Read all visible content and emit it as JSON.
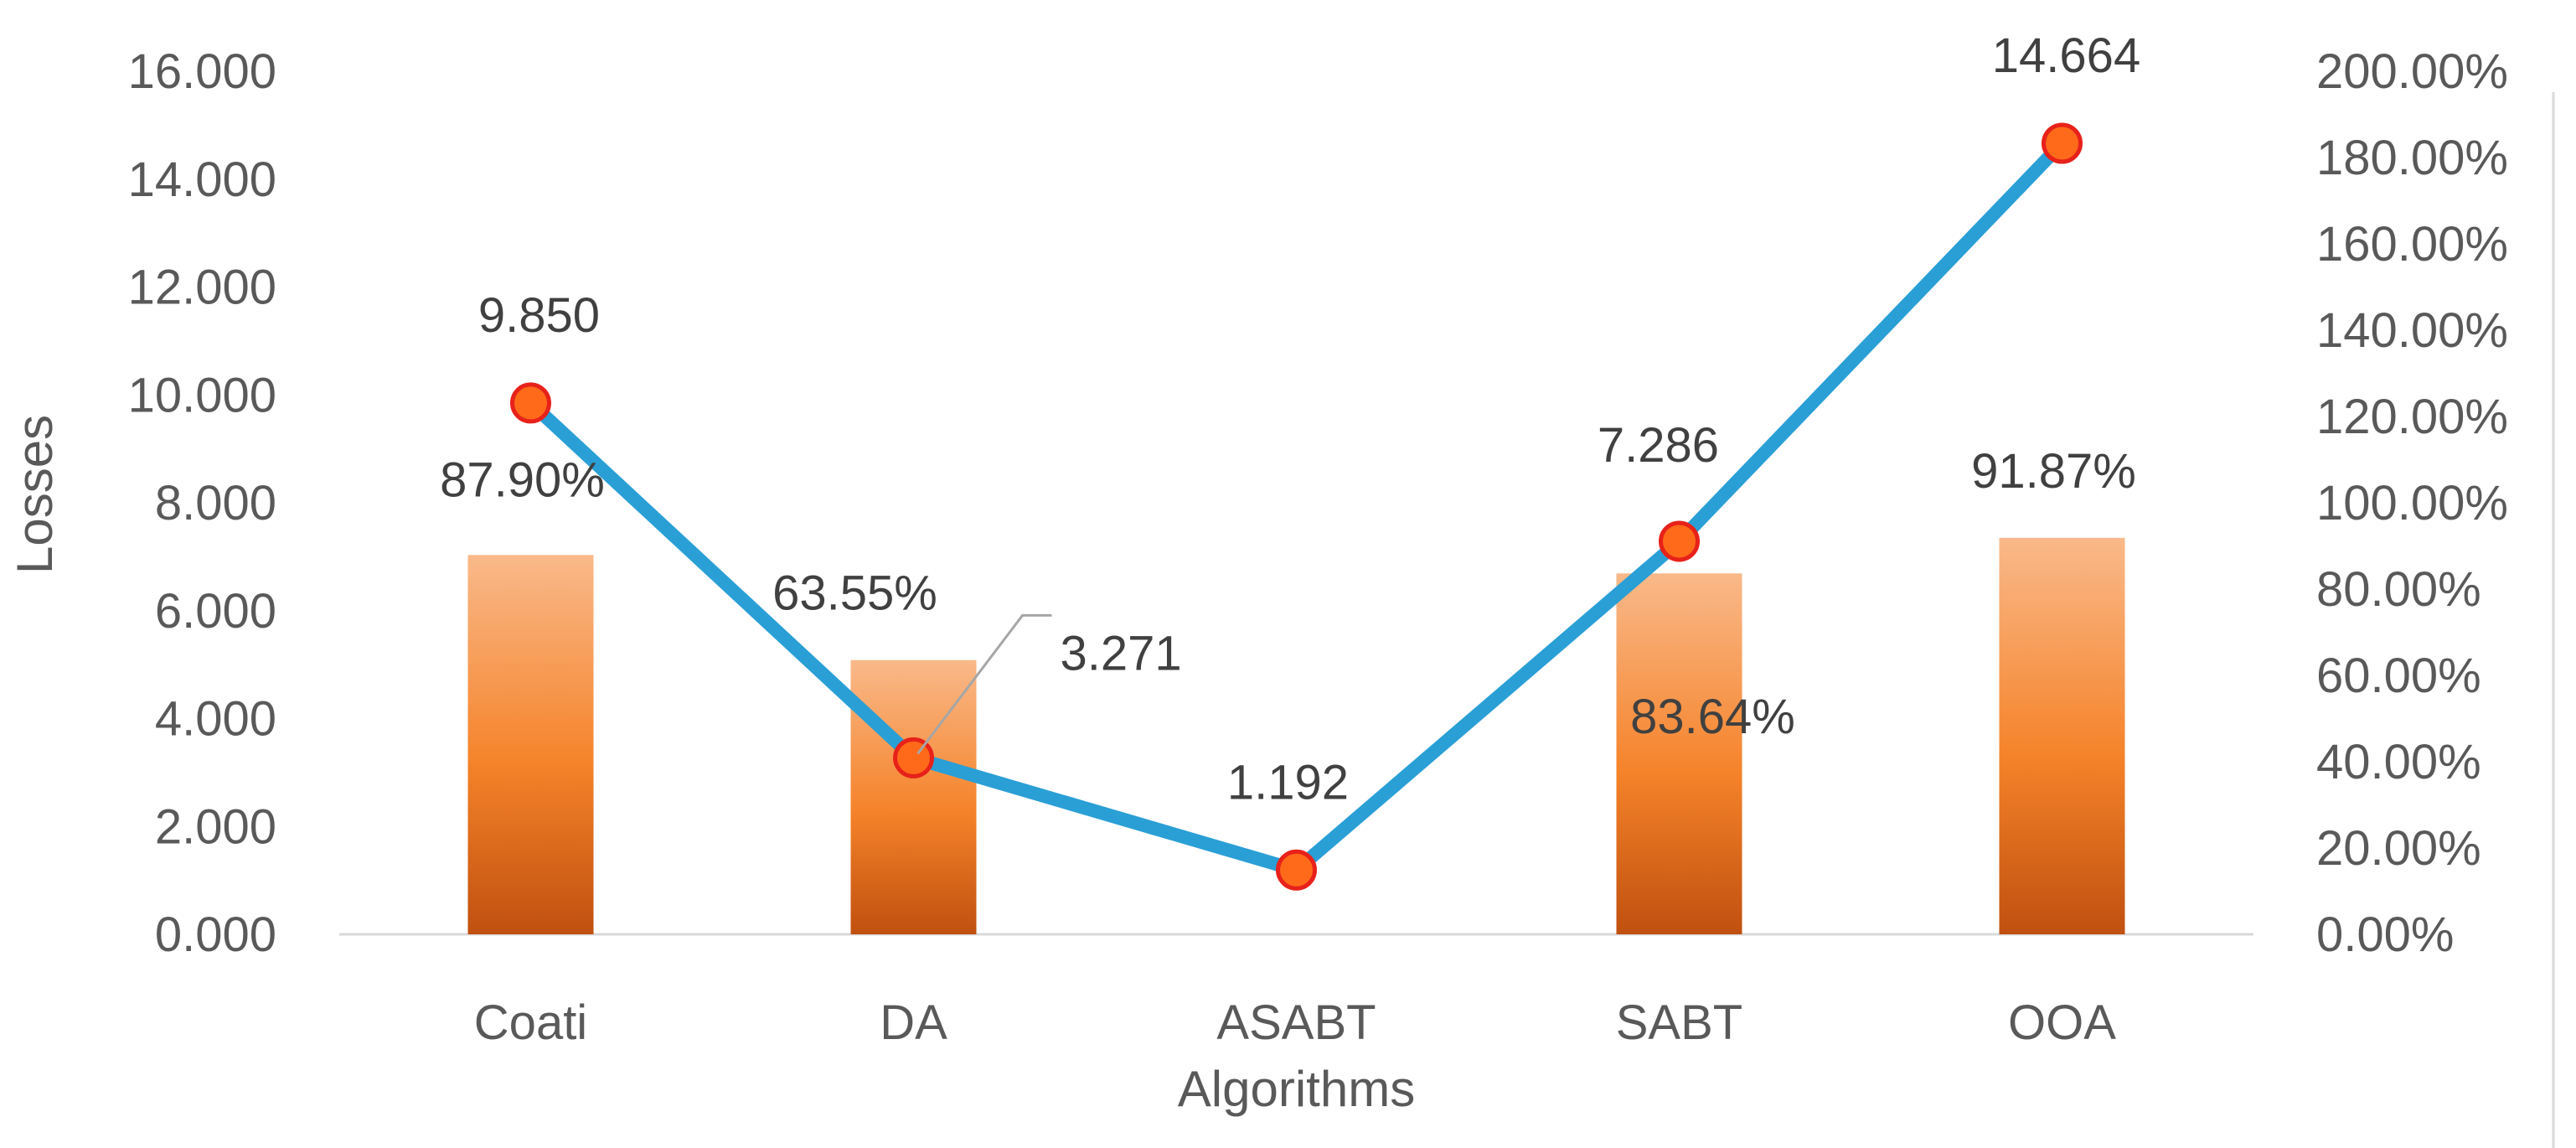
{
  "chart_data": {
    "type": "bar+line",
    "categories": [
      "Coati",
      "DA",
      "ASABT",
      "SABT",
      "OOA"
    ],
    "xlabel": "Algorithms",
    "ylabel": "Losses",
    "ylim": [
      0,
      16
    ],
    "y_ticks": [
      "0.000",
      "2.000",
      "4.000",
      "6.000",
      "8.000",
      "10.000",
      "12.000",
      "14.000",
      "16.000"
    ],
    "y2lim": [
      0,
      200
    ],
    "y2_ticks": [
      "0.00%",
      "20.00%",
      "40.00%",
      "60.00%",
      "80.00%",
      "100.00%",
      "120.00%",
      "140.00%",
      "160.00%",
      "180.00%",
      "200.00%"
    ],
    "series": [
      {
        "type": "bar",
        "axis": "right",
        "values": [
          87.9,
          63.55,
          0,
          83.64,
          91.87
        ],
        "labels": [
          "87.90%",
          "63.55%",
          "",
          "83.64%",
          "91.87%"
        ]
      },
      {
        "type": "line",
        "axis": "left",
        "values": [
          9.85,
          3.271,
          1.192,
          7.286,
          14.664
        ],
        "labels": [
          "9.850",
          "3.271",
          "1.192",
          "7.286",
          "14.664"
        ]
      }
    ],
    "colors": {
      "bar_top": "#f9b98a",
      "bar_mid": "#f5832a",
      "bar_bottom": "#c0500f",
      "line": "#2a9fd6",
      "marker_fill": "#ff6a1a",
      "marker_stroke": "#e8211a",
      "grid": "#d9d9d9",
      "text": "#595959"
    },
    "grid": false,
    "legend": "none"
  }
}
